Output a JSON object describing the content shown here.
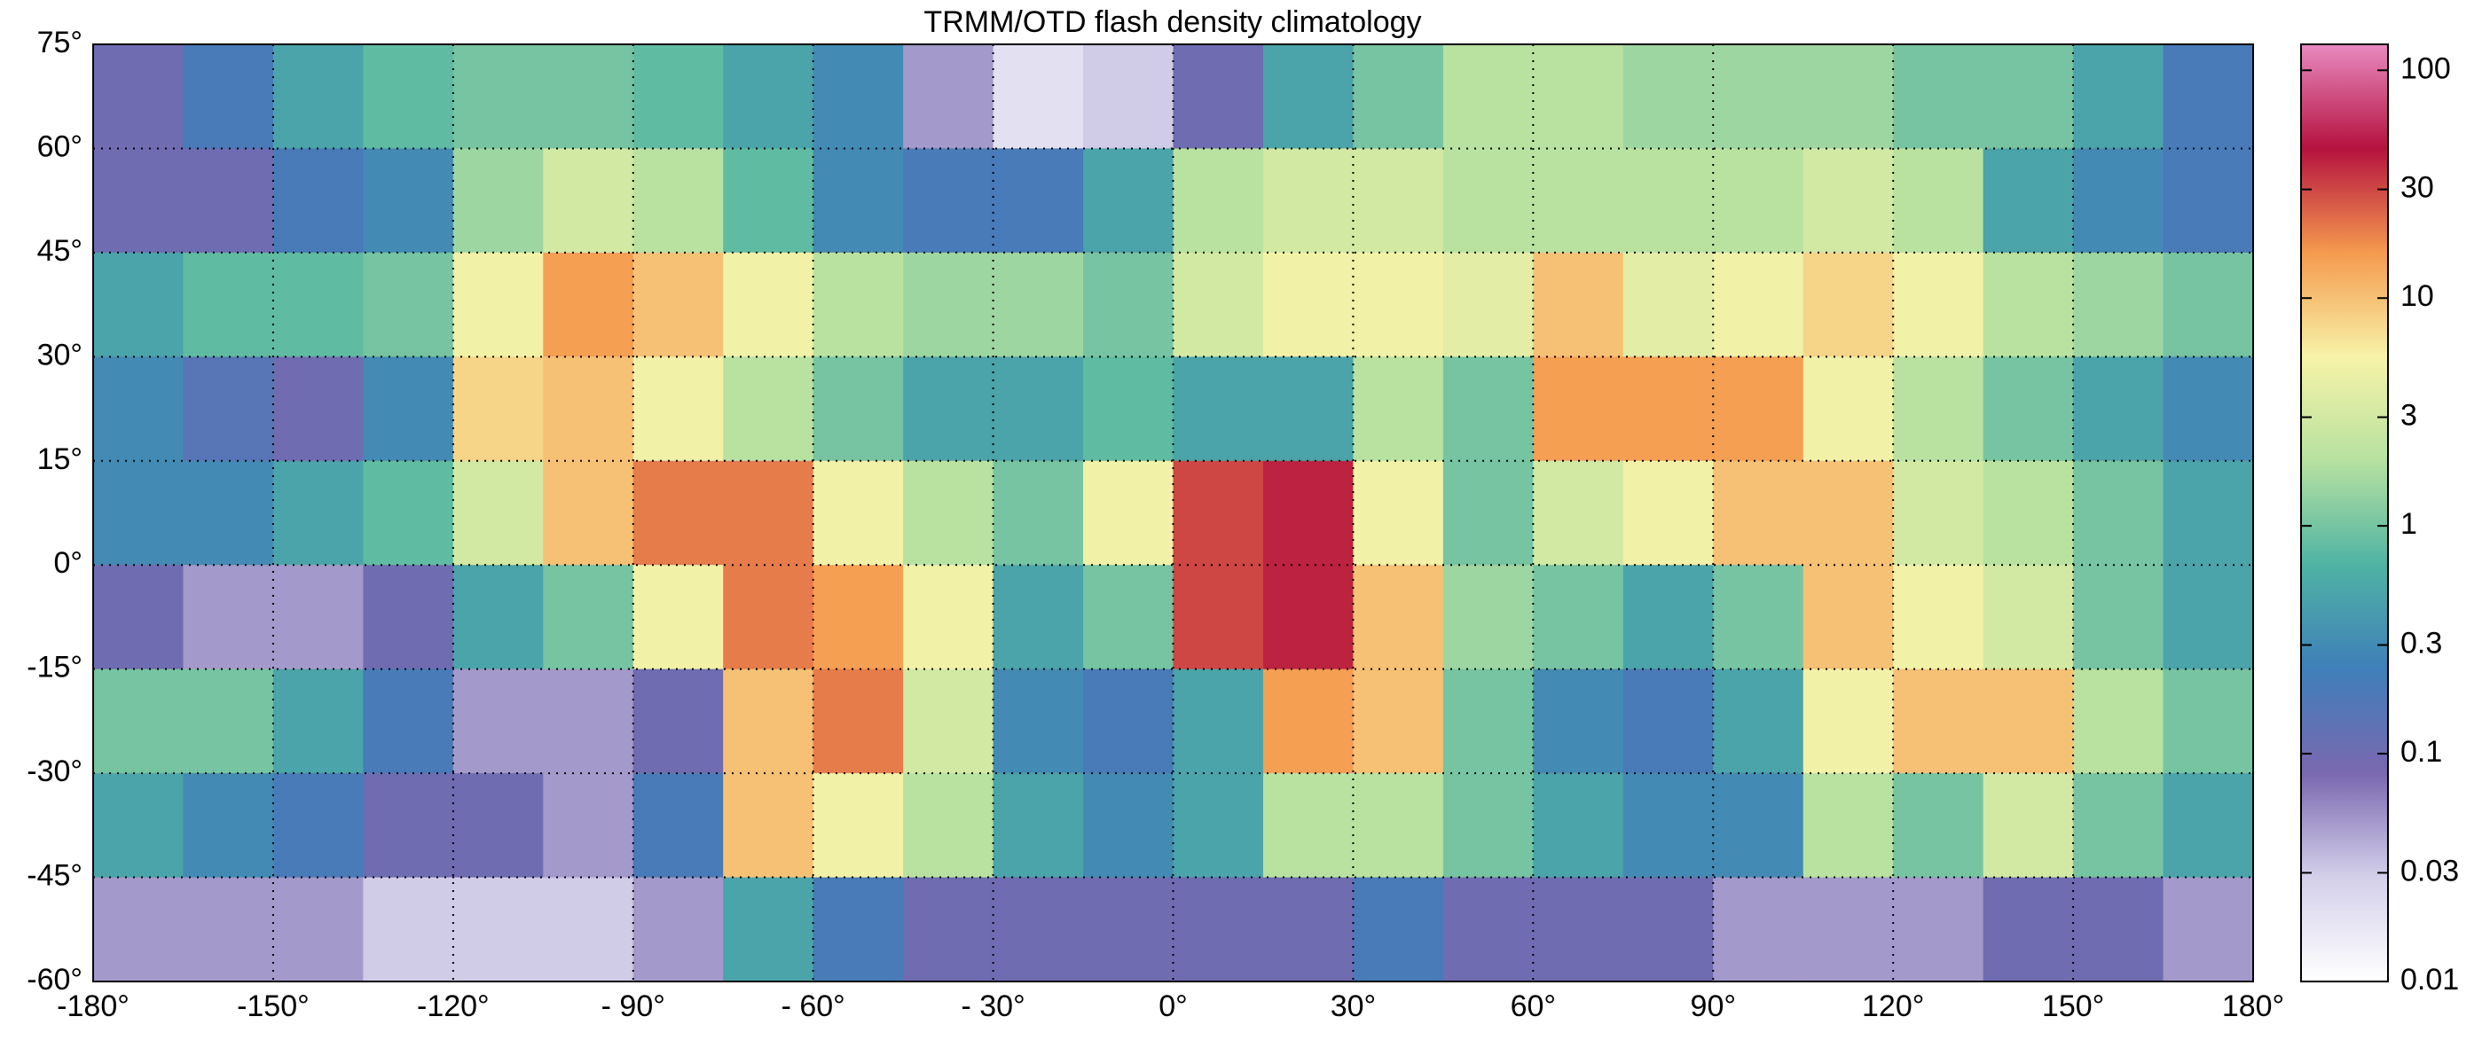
{
  "chart_data": {
    "type": "heatmap",
    "title": "TRMM/OTD flash density climatology",
    "x": [
      -172.5,
      -157.5,
      -142.5,
      -127.5,
      -112.5,
      -97.5,
      -82.5,
      -67.5,
      -52.5,
      -37.5,
      -22.5,
      -7.5,
      7.5,
      22.5,
      37.5,
      52.5,
      67.5,
      82.5,
      97.5,
      112.5,
      127.5,
      142.5,
      157.5,
      172.5
    ],
    "y": [
      67.5,
      52.5,
      37.5,
      22.5,
      7.5,
      -7.5,
      -22.5,
      -37.5,
      -52.5
    ],
    "values": [
      [
        0.1,
        0.2,
        0.5,
        0.8,
        1,
        1,
        0.8,
        0.5,
        0.3,
        0.05,
        0.02,
        0.03,
        0.1,
        0.5,
        1,
        2,
        2,
        1.5,
        1.5,
        1.5,
        1,
        1,
        0.5,
        0.2
      ],
      [
        0.1,
        0.1,
        0.2,
        0.3,
        1.5,
        3,
        2,
        0.8,
        0.3,
        0.2,
        0.2,
        0.5,
        2,
        3,
        3,
        2,
        2,
        2,
        2,
        3,
        2,
        0.5,
        0.3,
        0.2
      ],
      [
        0.5,
        0.8,
        0.8,
        1,
        5,
        15,
        10,
        5,
        2,
        1.5,
        1.5,
        1,
        3,
        5,
        5,
        4,
        10,
        4,
        5,
        8,
        5,
        2,
        1.5,
        1
      ],
      [
        0.3,
        0.15,
        0.1,
        0.3,
        8,
        10,
        5,
        2,
        1,
        0.5,
        0.5,
        0.8,
        0.5,
        0.5,
        2,
        1,
        15,
        15,
        15,
        5,
        2,
        1,
        0.5,
        0.3
      ],
      [
        0.3,
        0.3,
        0.5,
        0.8,
        3,
        10,
        20,
        20,
        5,
        2,
        1,
        5,
        30,
        40,
        5,
        1,
        3,
        5,
        10,
        10,
        3,
        2,
        1,
        0.5
      ],
      [
        0.1,
        0.05,
        0.05,
        0.1,
        0.5,
        1,
        5,
        20,
        15,
        5,
        0.5,
        1,
        30,
        40,
        10,
        1.5,
        1,
        0.5,
        1,
        10,
        5,
        3,
        1,
        0.5
      ],
      [
        1,
        1,
        0.5,
        0.2,
        0.05,
        0.05,
        0.1,
        10,
        20,
        3,
        0.3,
        0.2,
        0.5,
        15,
        10,
        1,
        0.3,
        0.2,
        0.5,
        5,
        10,
        10,
        2,
        1
      ],
      [
        0.5,
        0.3,
        0.2,
        0.1,
        0.1,
        0.05,
        0.2,
        10,
        5,
        2,
        0.5,
        0.3,
        0.5,
        2,
        2,
        1,
        0.5,
        0.3,
        0.3,
        2,
        1,
        3,
        1,
        0.5
      ],
      [
        0.05,
        0.05,
        0.05,
        0.03,
        0.03,
        0.03,
        0.05,
        0.5,
        0.2,
        0.1,
        0.1,
        0.1,
        0.1,
        0.1,
        0.2,
        0.1,
        0.1,
        0.1,
        0.05,
        0.05,
        0.05,
        0.1,
        0.1,
        0.05
      ]
    ],
    "xlim": [
      -180,
      180
    ],
    "ylim": [
      -60,
      75
    ],
    "xticks": [
      {
        "value": -180,
        "label": "-180°"
      },
      {
        "value": -150,
        "label": "-150°"
      },
      {
        "value": -120,
        "label": "-120°"
      },
      {
        "value": -90,
        "label": "- 90°"
      },
      {
        "value": -60,
        "label": "- 60°"
      },
      {
        "value": -30,
        "label": "- 30°"
      },
      {
        "value": 0,
        "label": "0°"
      },
      {
        "value": 30,
        "label": "30°"
      },
      {
        "value": 60,
        "label": "60°"
      },
      {
        "value": 90,
        "label": "90°"
      },
      {
        "value": 120,
        "label": "120°"
      },
      {
        "value": 150,
        "label": "150°"
      },
      {
        "value": 180,
        "label": "180°"
      }
    ],
    "yticks": [
      {
        "value": 75,
        "label": "75°"
      },
      {
        "value": 60,
        "label": "60°"
      },
      {
        "value": 45,
        "label": "45°"
      },
      {
        "value": 30,
        "label": "30°"
      },
      {
        "value": 15,
        "label": "15°"
      },
      {
        "value": 0,
        "label": "0°"
      },
      {
        "value": -15,
        "label": "-15°"
      },
      {
        "value": -30,
        "label": "-30°"
      },
      {
        "value": -45,
        "label": "-45°"
      },
      {
        "value": -60,
        "label": "-60°"
      }
    ],
    "grid": true,
    "color_scale": "log",
    "clim": [
      0.01,
      130
    ],
    "cticks": [
      0.01,
      0.03,
      0.1,
      0.3,
      1,
      3,
      10,
      30,
      100
    ],
    "colormap": [
      "#ffffff",
      "#d4d0ea",
      "#7a68b0",
      "#3f7fb9",
      "#4fb3a4",
      "#b7e1a0",
      "#f7f3a8",
      "#f59a4e",
      "#b5123f",
      "#e88ac0"
    ]
  }
}
